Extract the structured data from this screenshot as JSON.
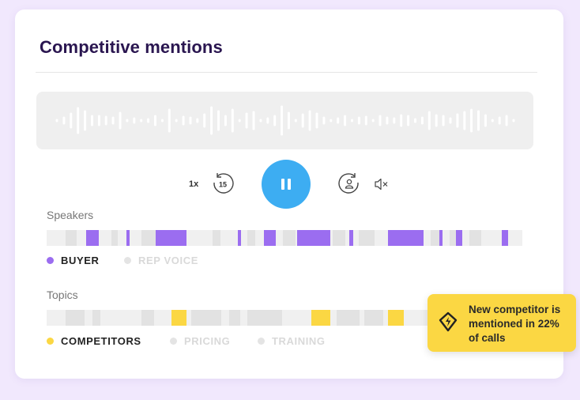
{
  "card": {
    "title": "Competitive mentions"
  },
  "player": {
    "speed_label": "1x",
    "rewind_seconds": "15",
    "state": "playing"
  },
  "speakers": {
    "label": "Speakers",
    "legend": [
      {
        "label": "BUYER",
        "color": "#9b6df0",
        "active": true
      },
      {
        "label": "REP VOICE",
        "color": "#e4e4e4",
        "active": false
      }
    ]
  },
  "topics": {
    "label": "Topics",
    "legend": [
      {
        "label": "COMPETITORS",
        "color": "#fbd743",
        "active": true
      },
      {
        "label": "PRICING",
        "color": "#e4e4e4",
        "active": false
      },
      {
        "label": "TRAINING",
        "color": "#e4e4e4",
        "active": false
      }
    ]
  },
  "toast": {
    "text": "New competitor is mentioned in 22% of calls"
  },
  "colors": {
    "accent_play": "#3dadf2",
    "buyer": "#9b6df0",
    "competitors": "#fbd743",
    "title": "#2a1650"
  }
}
